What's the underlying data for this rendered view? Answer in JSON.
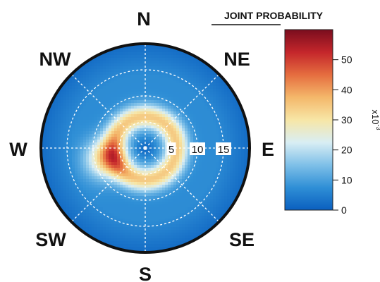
{
  "chart_data": {
    "type": "heatmap",
    "subtype": "polar",
    "title": "",
    "legend": {
      "title": "JOINT PROBABILITY",
      "ticks": [
        0,
        10,
        20,
        30,
        40,
        50
      ],
      "range": [
        0,
        60
      ],
      "scale_label": "x10",
      "scale_exponent": "-3",
      "colors": [
        "#0a5fbf",
        "#2f8fd6",
        "#7fc0e8",
        "#d9eef4",
        "#f7e6a6",
        "#f4b76a",
        "#e56d3f",
        "#c4262b",
        "#7a0d1e"
      ]
    },
    "directions": [
      {
        "label": "N",
        "angle": 0
      },
      {
        "label": "NE",
        "angle": 45
      },
      {
        "label": "E",
        "angle": 90
      },
      {
        "label": "SE",
        "angle": 135
      },
      {
        "label": "S",
        "angle": 180
      },
      {
        "label": "SW",
        "angle": 225
      },
      {
        "label": "W",
        "angle": 270
      },
      {
        "label": "NW",
        "angle": 315
      }
    ],
    "radial_ticks": [
      "5",
      "10",
      "15"
    ],
    "radial_values": [
      5,
      10,
      15
    ],
    "radial_max": 20,
    "peak": {
      "direction_deg": 255,
      "radius": 8,
      "value": 57
    },
    "ring_radius": 6,
    "background_value": 7
  }
}
